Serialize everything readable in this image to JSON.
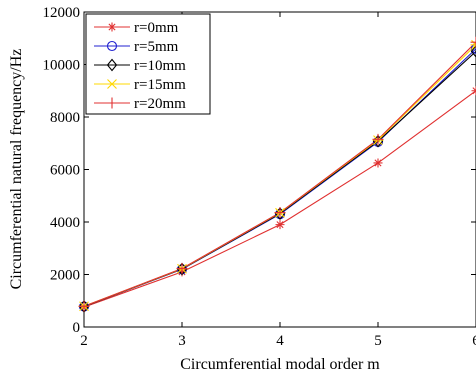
{
  "chart_data": {
    "type": "line",
    "title": "",
    "xlabel": "Circumferential modal order m",
    "ylabel": "Circumferential natural frequency/Hz",
    "x": [
      2,
      3,
      4,
      5,
      6
    ],
    "xlim": [
      2,
      6
    ],
    "ylim": [
      0,
      12000
    ],
    "xticks": [
      "2",
      "3",
      "4",
      "5",
      "6"
    ],
    "yticks": [
      "0",
      "2000",
      "4000",
      "6000",
      "8000",
      "10000",
      "12000"
    ],
    "grid": false,
    "legend_position": "top-left",
    "series": [
      {
        "name": "r=0mm",
        "color": "#e03030",
        "marker": "star",
        "values": [
          760,
          2100,
          3900,
          6250,
          9000
        ]
      },
      {
        "name": "r=5mm",
        "color": "#2020d0",
        "marker": "circle",
        "values": [
          780,
          2200,
          4300,
          7050,
          10600
        ]
      },
      {
        "name": "r=10mm",
        "color": "#000000",
        "marker": "diamond",
        "values": [
          780,
          2210,
          4320,
          7080,
          10500
        ]
      },
      {
        "name": "r=15mm",
        "color": "#ffd800",
        "marker": "x-cross",
        "values": [
          790,
          2220,
          4350,
          7120,
          10750
        ]
      },
      {
        "name": "r=20mm",
        "color": "#e03030",
        "marker": "plus",
        "values": [
          790,
          2230,
          4360,
          7150,
          10850
        ]
      }
    ]
  }
}
